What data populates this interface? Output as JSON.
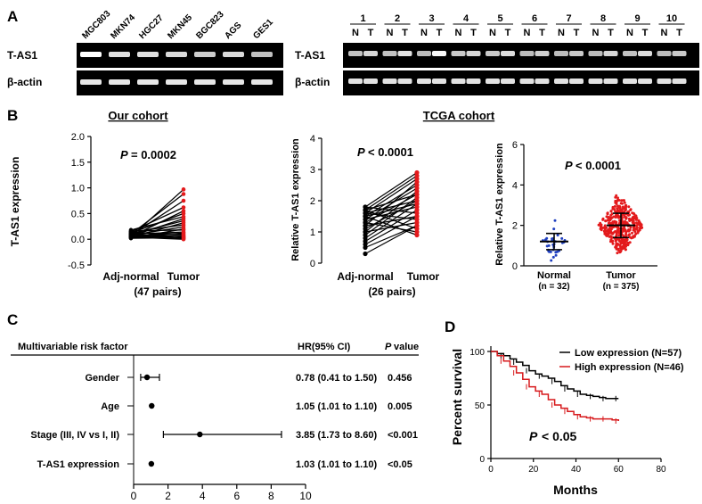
{
  "panel_labels": {
    "a": "A",
    "b": "B",
    "c": "C",
    "d": "D"
  },
  "panelA": {
    "cell_lines": [
      "MGC803",
      "MKN74",
      "HGC27",
      "MKN45",
      "BGC823",
      "AGS",
      "GES1"
    ],
    "row_labels": {
      "target": "T-AS1",
      "control": "β-actin"
    },
    "pair_numbers": [
      "1",
      "2",
      "3",
      "4",
      "5",
      "6",
      "7",
      "8",
      "9",
      "10"
    ],
    "normal_letter": "N",
    "tumor_letter": "T"
  },
  "panelB": {
    "our_title": "Our cohort",
    "tcga_title": "TCGA cohort",
    "pvalue1": "= 0.0002",
    "pvalue2": "< 0.0001",
    "pvalue3": "< 0.0001",
    "p_letter": "P",
    "left_ylabel": "T-AS1 expression",
    "rel_ylabel": "Relative T-AS1 expression",
    "xcat_normal": "Adj-normal",
    "xcat_tumor": "Tumor",
    "pairs1": "(47 pairs)",
    "pairs2": "(26 pairs)",
    "scatter_normal": "Normal",
    "scatter_tumor": "Tumor",
    "n_normal": "(n = 32)",
    "n_tumor": "(n = 375)",
    "yticks1": [
      "-0.5",
      "0.0",
      "0.5",
      "1.0",
      "1.5",
      "2.0"
    ],
    "yticks2": [
      "0",
      "1",
      "2",
      "3",
      "4"
    ],
    "yticks3": [
      "0",
      "2",
      "4",
      "6"
    ]
  },
  "panelC": {
    "header_factor": "Multivariable risk factor",
    "header_hr": "HR(95% CI)",
    "header_p_letter": "P",
    "header_p_rest": "value",
    "rows": [
      {
        "label": "Gender",
        "hr": "0.78 (0.41 to 1.50)",
        "p": "0.456"
      },
      {
        "label": "Age",
        "hr": "1.05 (1.01 to 1.10)",
        "p": "0.005"
      },
      {
        "label": "Stage (III, IV vs I, II)",
        "hr": "3.85 (1.73 to 8.60)",
        "p": "<0.001"
      },
      {
        "label": "T-AS1 expression",
        "hr": "1.03 (1.01 to 1.10)",
        "p": "<0.05"
      }
    ],
    "xticks": [
      "0",
      "2",
      "4",
      "6",
      "8",
      "10"
    ]
  },
  "panelD": {
    "ylabel": "Percent survival",
    "xlabel": "Months",
    "legend_low": "Low expression (N=57)",
    "legend_high": "High expression (N=46)",
    "p_letter": "P",
    "p_rest": "< 0.05",
    "xticks": [
      "0",
      "20",
      "40",
      "60",
      "80"
    ],
    "yticks": [
      "0",
      "50",
      "100"
    ],
    "colors": {
      "low": "#000000",
      "high": "#d7191c"
    }
  },
  "chart_data": [
    {
      "type": "line",
      "title": "Our cohort",
      "ylabel": "T-AS1 expression",
      "categories": [
        "Adj-normal",
        "Tumor"
      ],
      "ylim": [
        -0.5,
        2.0
      ],
      "pvalue": "P = 0.0002",
      "pairs_shown": [
        [
          0.05,
          0.97
        ],
        [
          0.1,
          0.88
        ],
        [
          0.08,
          0.75
        ],
        [
          0.15,
          0.62
        ],
        [
          0.05,
          0.55
        ],
        [
          0.12,
          0.5
        ],
        [
          0.18,
          0.44
        ],
        [
          0.06,
          0.4
        ],
        [
          0.1,
          0.36
        ],
        [
          0.04,
          0.32
        ],
        [
          0.14,
          0.28
        ],
        [
          0.08,
          0.24
        ],
        [
          0.02,
          0.2
        ],
        [
          0.16,
          0.18
        ],
        [
          0.1,
          0.14
        ],
        [
          0.05,
          0.12
        ],
        [
          0.12,
          0.1
        ],
        [
          0.06,
          0.08
        ],
        [
          0.03,
          0.06
        ],
        [
          0.09,
          0.05
        ],
        [
          0.14,
          0.04
        ],
        [
          0.02,
          0.03
        ],
        [
          0.07,
          0.02
        ],
        [
          0.11,
          0.01
        ],
        [
          0.04,
          0.0
        ]
      ]
    },
    {
      "type": "line",
      "title": "TCGA cohort",
      "ylabel": "Relative T-AS1 expression",
      "categories": [
        "Adj-normal",
        "Tumor"
      ],
      "ylim": [
        0,
        4
      ],
      "pvalue": "P < 0.0001",
      "pairs_shown": [
        [
          1.8,
          2.9
        ],
        [
          1.7,
          2.8
        ],
        [
          1.6,
          2.7
        ],
        [
          1.2,
          2.6
        ],
        [
          1.5,
          2.5
        ],
        [
          1.4,
          2.4
        ],
        [
          1.0,
          2.3
        ],
        [
          1.7,
          2.2
        ],
        [
          1.3,
          2.2
        ],
        [
          0.9,
          2.1
        ],
        [
          1.6,
          2.0
        ],
        [
          1.1,
          2.0
        ],
        [
          1.5,
          1.9
        ],
        [
          0.8,
          1.9
        ],
        [
          1.4,
          1.8
        ],
        [
          0.7,
          1.7
        ],
        [
          1.8,
          1.6
        ],
        [
          1.2,
          1.5
        ],
        [
          0.6,
          1.5
        ],
        [
          1.6,
          1.4
        ],
        [
          1.0,
          1.3
        ],
        [
          0.5,
          1.2
        ],
        [
          1.7,
          1.1
        ],
        [
          1.3,
          1.0
        ],
        [
          0.3,
          1.2
        ],
        [
          1.5,
          0.9
        ]
      ]
    },
    {
      "type": "scatter",
      "ylabel": "Relative T-AS1 expression",
      "categories": [
        "Normal (n = 32)",
        "Tumor (n = 375)"
      ],
      "ylim": [
        0,
        6
      ],
      "pvalue": "P < 0.0001",
      "groups": [
        {
          "name": "Normal",
          "n": 32,
          "mean": 1.2,
          "sd": 0.4
        },
        {
          "name": "Tumor",
          "n": 375,
          "mean": 2.0,
          "sd": 0.6
        }
      ]
    },
    {
      "type": "scatter",
      "title": "Multivariable risk factor",
      "xlim": [
        0,
        10
      ],
      "rows": [
        {
          "name": "Gender",
          "hr": 0.78,
          "lo": 0.41,
          "hi": 1.5
        },
        {
          "name": "Age",
          "hr": 1.05,
          "lo": 1.01,
          "hi": 1.1
        },
        {
          "name": "Stage (III, IV vs I, II)",
          "hr": 3.85,
          "lo": 1.73,
          "hi": 8.6
        },
        {
          "name": "T-AS1 expression",
          "hr": 1.03,
          "lo": 1.01,
          "hi": 1.1
        }
      ]
    },
    {
      "type": "line",
      "xlabel": "Months",
      "ylabel": "Percent survival",
      "xlim": [
        0,
        80
      ],
      "ylim": [
        0,
        100
      ],
      "pvalue": "P < 0.05",
      "series": [
        {
          "name": "Low expression (N=57)",
          "points": [
            [
              0,
              100
            ],
            [
              3,
              98
            ],
            [
              6,
              96
            ],
            [
              9,
              93
            ],
            [
              12,
              90
            ],
            [
              15,
              87
            ],
            [
              18,
              82
            ],
            [
              21,
              79
            ],
            [
              24,
              77
            ],
            [
              27,
              75
            ],
            [
              30,
              72
            ],
            [
              33,
              68
            ],
            [
              36,
              65
            ],
            [
              39,
              63
            ],
            [
              42,
              60
            ],
            [
              45,
              59
            ],
            [
              48,
              58
            ],
            [
              51,
              57
            ],
            [
              54,
              56
            ],
            [
              57,
              56
            ],
            [
              60,
              56
            ]
          ]
        },
        {
          "name": "High expression (N=46)",
          "points": [
            [
              0,
              100
            ],
            [
              3,
              96
            ],
            [
              6,
              91
            ],
            [
              9,
              86
            ],
            [
              12,
              80
            ],
            [
              15,
              74
            ],
            [
              18,
              67
            ],
            [
              21,
              63
            ],
            [
              24,
              60
            ],
            [
              27,
              55
            ],
            [
              30,
              50
            ],
            [
              33,
              47
            ],
            [
              36,
              44
            ],
            [
              39,
              41
            ],
            [
              42,
              39
            ],
            [
              45,
              38
            ],
            [
              48,
              37
            ],
            [
              51,
              37
            ],
            [
              54,
              37
            ],
            [
              57,
              36
            ],
            [
              60,
              35
            ]
          ]
        }
      ]
    }
  ]
}
